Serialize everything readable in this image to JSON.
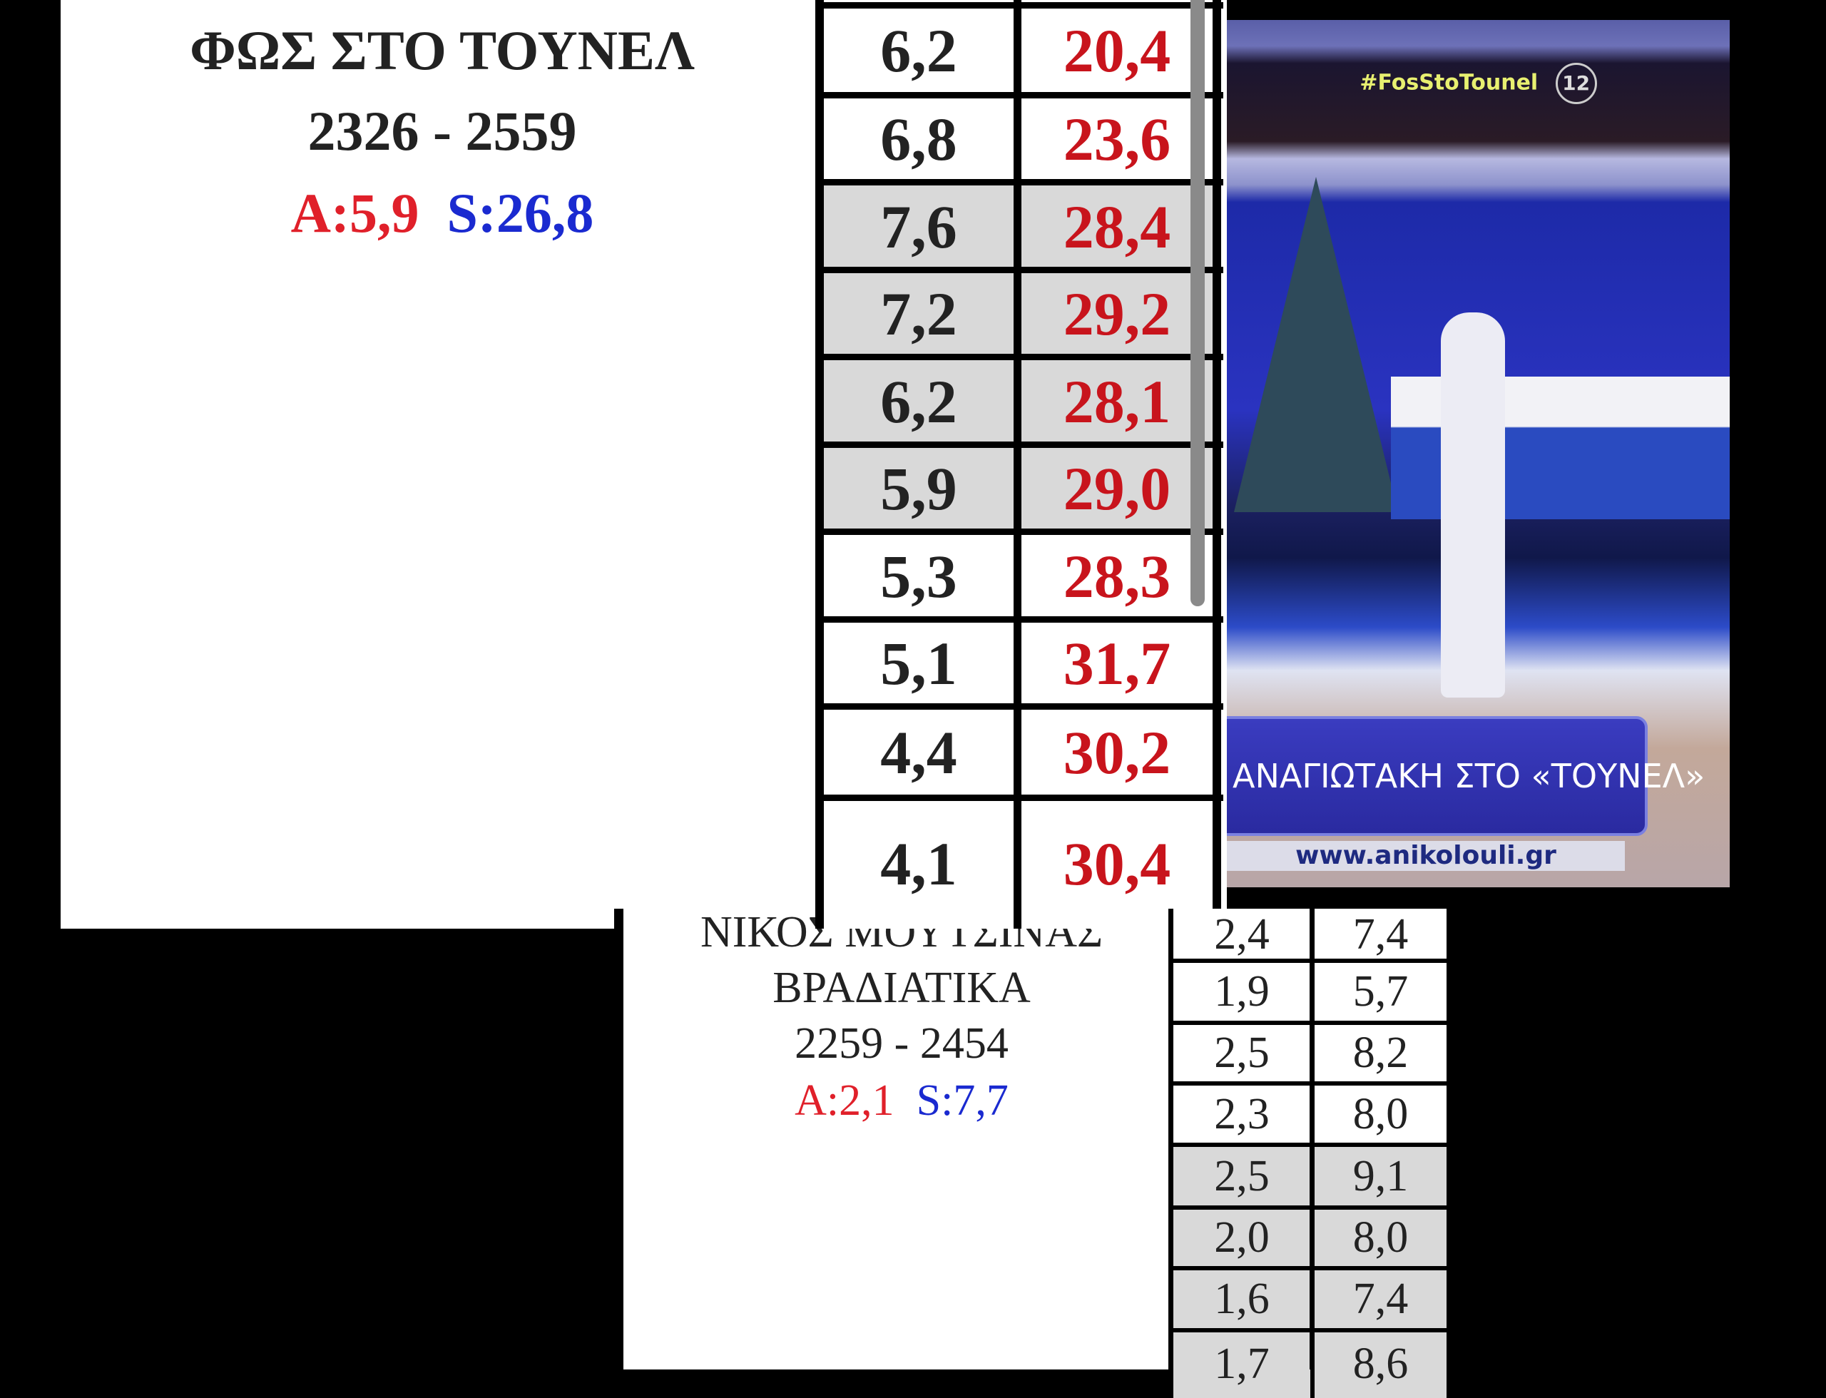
{
  "top_block": {
    "title": "ΦΩΣ ΣΤΟ ΤΟΥΝΕΛ",
    "time_range": "2326 - 2559",
    "a_label": "A:5,9",
    "s_label": "S:26,8",
    "rows": [
      {
        "a": "6,2",
        "s": "20,4",
        "shaded": false
      },
      {
        "a": "6,8",
        "s": "23,6",
        "shaded": false
      },
      {
        "a": "7,6",
        "s": "28,4",
        "shaded": true
      },
      {
        "a": "7,2",
        "s": "29,2",
        "shaded": true
      },
      {
        "a": "6,2",
        "s": "28,1",
        "shaded": true
      },
      {
        "a": "5,9",
        "s": "29,0",
        "shaded": true
      },
      {
        "a": "5,3",
        "s": "28,3",
        "shaded": false
      },
      {
        "a": "5,1",
        "s": "31,7",
        "shaded": false
      },
      {
        "a": "4,4",
        "s": "30,2",
        "shaded": false
      },
      {
        "a": "4,1",
        "s": "30,4",
        "shaded": false
      }
    ]
  },
  "tv_frame": {
    "hashtag": "#FosStoTounel",
    "channel_logo": "12",
    "lower_third": "ΑΝΑΓΙΩΤΑΚΗ ΣΤΟ «ΤΟΥΝΕΛ»",
    "website": "www.anikolouli.gr"
  },
  "bottom_block": {
    "title_line1": "ΝΙΚΟΣ ΜΟΥΤΣΙΝΑΣ",
    "title_line2": "ΒΡΑΔΙΑΤΙΚΑ",
    "time_range": "2259 - 2454",
    "a_label": "A:2,1",
    "s_label": "S:7,7",
    "rows": [
      {
        "a": "2,4",
        "s": "7,4",
        "shaded": false
      },
      {
        "a": "1,9",
        "s": "5,7",
        "shaded": false
      },
      {
        "a": "2,5",
        "s": "8,2",
        "shaded": false
      },
      {
        "a": "2,3",
        "s": "8,0",
        "shaded": false
      },
      {
        "a": "2,5",
        "s": "9,1",
        "shaded": true
      },
      {
        "a": "2,0",
        "s": "8,0",
        "shaded": true
      },
      {
        "a": "1,6",
        "s": "7,4",
        "shaded": true
      },
      {
        "a": "1,7",
        "s": "8,6",
        "shaded": true
      }
    ]
  },
  "colors": {
    "a_red": "#e0202a",
    "s_blue": "#1a2ad0",
    "value_red": "#c8141c",
    "shade": "#d9d9d9"
  }
}
